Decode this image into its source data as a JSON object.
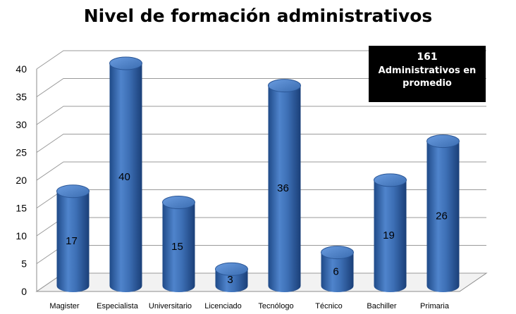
{
  "chart_data": {
    "type": "bar",
    "title": "Nivel de formación administrativos",
    "categories": [
      "Magister",
      "Especialista",
      "Universitario",
      "Licenciado",
      "Tecnólogo",
      "Técnico",
      "Bachiller",
      "Primaria"
    ],
    "series": [
      {
        "values": [
          17,
          40,
          15,
          3,
          36,
          6,
          19,
          26
        ]
      }
    ],
    "ylim": [
      0,
      40
    ],
    "yticks": [
      0,
      5,
      10,
      15,
      20,
      25,
      30,
      35,
      40
    ],
    "grid": true,
    "bar_style": "3d-cylinder",
    "colors": {
      "bar": "#3d6fb5",
      "bar_dark": "#1f4a88",
      "bar_top": "#5b8fd4",
      "grid": "#9a9a9a"
    }
  },
  "info_box": {
    "value": "161",
    "line1": "Administrativos en",
    "line2": "promedio"
  }
}
